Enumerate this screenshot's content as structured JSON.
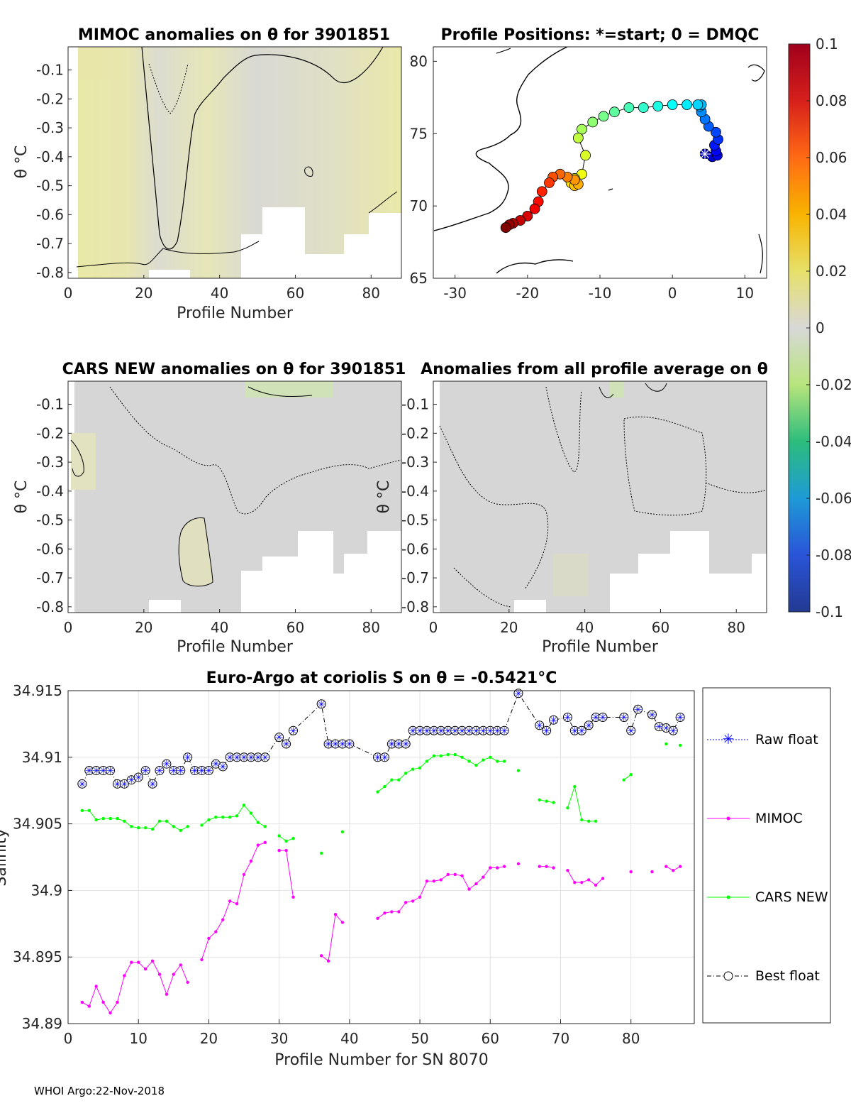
{
  "footer": "WHOI Argo:22-Nov-2018",
  "colors": {
    "raw": "#0000ff",
    "mimoc": "#ff00ff",
    "cars": "#00ff00",
    "best": "#000000"
  },
  "colorbar": {
    "ticks": [
      "0.1",
      "0.08",
      "0.06",
      "0.04",
      "0.02",
      "0",
      "-0.02",
      "-0.04",
      "-0.06",
      "-0.08",
      "-0.1"
    ]
  },
  "panels": {
    "mimoc": {
      "title": "MIMOC anomalies on θ  for 3901851",
      "xlabel": "Profile Number",
      "ylabel": "θ °C"
    },
    "positions": {
      "title": "Profile Positions: *=start; 0 = DMQC"
    },
    "cars": {
      "title": "CARS NEW anomalies on θ for 3901851",
      "xlabel": "Profile Number",
      "ylabel": "θ °C"
    },
    "allavg": {
      "title": "Anomalies from all profile average on θ",
      "xlabel": "Profile Number",
      "ylabel": "θ °C"
    }
  },
  "chart_data": [
    {
      "type": "heatmap",
      "title": "MIMOC anomalies on θ  for 3901851",
      "xlabel": "Profile Number",
      "ylabel": "θ °C",
      "xlim": [
        0,
        88
      ],
      "ylim": [
        -0.82,
        -0.02
      ],
      "xticks": [
        "0",
        "20",
        "40",
        "60",
        "80"
      ],
      "yticks": [
        "-0.1",
        "-0.2",
        "-0.3",
        "-0.4",
        "-0.5",
        "-0.6",
        "-0.7",
        "-0.8"
      ]
    },
    {
      "type": "scatter",
      "title": "Profile Positions: *=start; 0 = DMQC",
      "xlim": [
        -33,
        13
      ],
      "ylim": [
        65,
        81
      ],
      "xticks": [
        "-30",
        "-20",
        "-10",
        "0",
        "10"
      ],
      "yticks": [
        "80",
        "75",
        "70",
        "65"
      ],
      "track_lon": [
        4.5,
        5.5,
        6.2,
        6.0,
        5.8,
        6.3,
        6.0,
        5.0,
        4.5,
        4.0,
        3.8,
        4.0,
        3.5,
        2.0,
        0.0,
        -2.0,
        -4.0,
        -6.0,
        -8.0,
        -9.5,
        -11.0,
        -12.5,
        -13.0,
        -12.0,
        -12.5,
        -13.5,
        -14.0,
        -13.5,
        -13.0,
        -13.5,
        -14.5,
        -15.5,
        -16.5,
        -17.0,
        -18.0,
        -18.5,
        -19.0,
        -20.0,
        -21.0,
        -22.0,
        -22.5,
        -23.0
      ],
      "track_lat": [
        73.6,
        73.4,
        73.5,
        73.8,
        74.2,
        74.6,
        75.1,
        75.5,
        76.0,
        76.5,
        76.9,
        77.0,
        77.0,
        77.0,
        77.0,
        76.9,
        76.8,
        76.8,
        76.5,
        76.2,
        75.8,
        75.3,
        74.7,
        73.5,
        72.2,
        71.9,
        71.6,
        71.4,
        71.5,
        71.8,
        72.0,
        72.2,
        72.0,
        71.6,
        71.0,
        70.3,
        69.8,
        69.3,
        69.0,
        68.8,
        68.7,
        68.5
      ]
    },
    {
      "type": "heatmap",
      "title": "CARS NEW anomalies on θ for 3901851",
      "xlabel": "Profile Number",
      "ylabel": "θ °C",
      "xlim": [
        0,
        88
      ],
      "ylim": [
        -0.82,
        -0.02
      ],
      "xticks": [
        "0",
        "20",
        "40",
        "60",
        "80"
      ],
      "yticks": [
        "-0.1",
        "-0.2",
        "-0.3",
        "-0.4",
        "-0.5",
        "-0.6",
        "-0.7",
        "-0.8"
      ]
    },
    {
      "type": "heatmap",
      "title": "Anomalies from all profile average on θ",
      "xlabel": "Profile Number",
      "ylabel": "θ °C",
      "xlim": [
        0,
        88
      ],
      "ylim": [
        -0.82,
        -0.02
      ],
      "xticks": [
        "0",
        "20",
        "40",
        "60",
        "80"
      ],
      "yticks": [
        "-0.1",
        "-0.2",
        "-0.3",
        "-0.4",
        "-0.5",
        "-0.6",
        "-0.7",
        "-0.8"
      ]
    },
    {
      "type": "line",
      "title": "Euro-Argo at coriolis S on θ = -0.5421°C",
      "xlabel": "Profile Number for SN 8070",
      "ylabel": "Salinity",
      "xlim": [
        0,
        89
      ],
      "ylim": [
        34.89,
        34.915
      ],
      "xticks": [
        "0",
        "10",
        "20",
        "30",
        "40",
        "50",
        "60",
        "70",
        "80"
      ],
      "yticks": [
        "34.89",
        "34.895",
        "34.9",
        "34.905",
        "34.91",
        "34.915"
      ],
      "legend": [
        "Raw float",
        "MIMOC",
        "CARS NEW",
        "Best float"
      ],
      "series": [
        {
          "name": "Best float",
          "x": [
            2,
            3,
            4,
            5,
            6,
            7,
            8,
            9,
            10,
            11,
            12,
            13,
            14,
            15,
            16,
            17,
            18,
            19,
            20,
            21,
            22,
            23,
            24,
            25,
            26,
            27,
            28,
            30,
            31,
            32,
            36,
            37,
            38,
            39,
            40,
            44,
            45,
            46,
            47,
            48,
            49,
            50,
            51,
            52,
            53,
            54,
            55,
            56,
            57,
            58,
            59,
            60,
            61,
            62,
            64,
            67,
            68,
            69,
            71,
            72,
            73,
            74,
            75,
            76,
            79,
            80,
            81,
            83,
            84,
            85,
            86,
            87
          ],
          "y": [
            34.908,
            34.909,
            34.909,
            34.909,
            34.909,
            34.908,
            34.908,
            34.9083,
            34.9085,
            34.909,
            34.908,
            34.909,
            34.9095,
            34.909,
            34.909,
            34.91,
            34.909,
            34.909,
            34.909,
            34.9095,
            34.9093,
            34.91,
            34.91,
            34.91,
            34.91,
            34.91,
            34.91,
            34.9115,
            34.911,
            34.912,
            34.914,
            34.911,
            34.911,
            34.911,
            34.911,
            34.91,
            34.91,
            34.911,
            34.911,
            34.911,
            34.912,
            34.912,
            34.912,
            34.912,
            34.912,
            34.912,
            34.912,
            34.912,
            34.912,
            34.912,
            34.912,
            34.912,
            34.912,
            34.912,
            34.9148,
            34.9124,
            34.912,
            34.9128,
            34.913,
            34.912,
            34.912,
            34.9124,
            34.913,
            34.913,
            34.913,
            34.912,
            34.9136,
            34.9132,
            34.9123,
            34.9122,
            34.912,
            34.913
          ]
        },
        {
          "name": "MIMOC",
          "x": [
            2,
            3,
            4,
            5,
            6,
            7,
            8,
            9,
            10,
            11,
            12,
            13,
            14,
            15,
            16,
            17,
            19,
            20,
            21,
            22,
            23,
            24,
            25,
            26,
            27,
            28,
            30,
            31,
            32,
            36,
            37,
            38,
            39,
            44,
            45,
            46,
            47,
            48,
            49,
            50,
            51,
            52,
            53,
            54,
            55,
            56,
            57,
            58,
            59,
            60,
            61,
            62,
            64,
            67,
            68,
            69,
            71,
            72,
            73,
            74,
            75,
            76,
            80,
            83,
            85,
            86,
            87
          ],
          "y": [
            34.8916,
            34.8913,
            34.8928,
            34.8916,
            34.8908,
            34.8916,
            34.8936,
            34.8946,
            34.8946,
            34.8941,
            34.8947,
            34.8937,
            34.8922,
            34.8937,
            34.8944,
            34.8931,
            34.8948,
            34.8964,
            34.8969,
            34.8978,
            34.8992,
            34.899,
            34.9012,
            34.9022,
            34.9034,
            34.9036,
            34.903,
            34.903,
            34.8995,
            34.8951,
            34.8947,
            34.8982,
            34.8976,
            34.8979,
            34.8983,
            34.8984,
            34.8984,
            34.8991,
            34.8992,
            34.8995,
            34.9007,
            34.9007,
            34.9008,
            34.9012,
            34.9012,
            34.9011,
            34.9001,
            34.9005,
            34.901,
            34.9017,
            34.9017,
            34.9018,
            34.902,
            34.9018,
            34.9018,
            34.9017,
            34.9015,
            34.9006,
            34.9006,
            34.9008,
            34.9004,
            34.9009,
            34.9014,
            34.9014,
            34.9018,
            34.9015,
            34.9018
          ]
        },
        {
          "name": "CARS NEW",
          "x": [
            2,
            3,
            4,
            5,
            6,
            7,
            8,
            9,
            10,
            11,
            12,
            13,
            14,
            15,
            16,
            17,
            19,
            20,
            21,
            22,
            23,
            24,
            25,
            26,
            27,
            28,
            30,
            31,
            32,
            36,
            39,
            44,
            45,
            46,
            47,
            48,
            49,
            50,
            51,
            52,
            53,
            54,
            55,
            56,
            57,
            58,
            59,
            60,
            61,
            62,
            64,
            67,
            68,
            69,
            71,
            72,
            73,
            74,
            75,
            79,
            80,
            85,
            87
          ],
          "y": [
            34.906,
            34.906,
            34.9053,
            34.9054,
            34.9054,
            34.9054,
            34.9052,
            34.9048,
            34.9047,
            34.9047,
            34.9046,
            34.9052,
            34.9052,
            34.9048,
            34.9045,
            34.9048,
            34.9049,
            34.9053,
            34.9055,
            34.9055,
            34.9055,
            34.9056,
            34.9064,
            34.9058,
            34.9051,
            34.9048,
            34.9041,
            34.9037,
            34.9039,
            34.9028,
            34.9044,
            34.9074,
            34.9078,
            34.9083,
            34.9083,
            34.9088,
            34.9091,
            34.9092,
            34.9097,
            34.9101,
            34.9101,
            34.9102,
            34.9102,
            34.91,
            34.9097,
            34.9094,
            34.9098,
            34.91,
            34.9097,
            34.9097,
            34.909,
            34.9068,
            34.9067,
            34.9066,
            34.9062,
            34.9078,
            34.9053,
            34.9052,
            34.9052,
            34.9083,
            34.9087,
            34.911,
            34.9109
          ]
        }
      ]
    }
  ]
}
